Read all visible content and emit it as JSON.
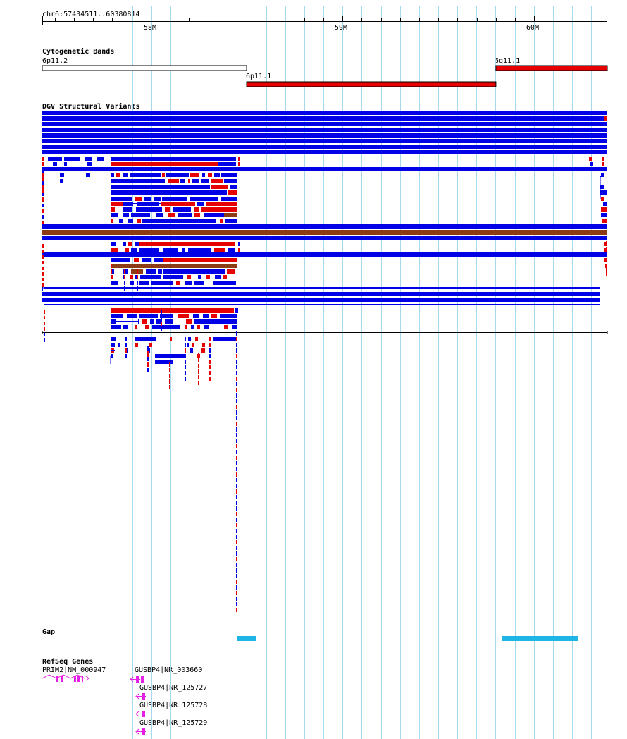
{
  "colors": {
    "background": "#ffffff",
    "gridline": "#a8d8ec",
    "sv_gain": "#0000e6",
    "sv_loss": "#e60000",
    "sv_gain_loss": "#8b3c14",
    "band_acen": "#e60000",
    "gap": "#1eb4e6",
    "refseq": "#e61ee6"
  },
  "ruler": {
    "position_label": "chr6:57434511..60380814",
    "start_bp": 57434511,
    "end_bp": 60380814,
    "ticks": [
      {
        "bp": 58000000,
        "label": "58M"
      },
      {
        "bp": 59000000,
        "label": "59M"
      },
      {
        "bp": 60000000,
        "label": "60M"
      }
    ]
  },
  "cytoband_track": {
    "title": "Cytogenetic Bands",
    "bands": [
      {
        "name": "6p11.2",
        "start": 57434511,
        "end": 58500000,
        "stain": "gneg",
        "row": 0
      },
      {
        "name": "6q11.1",
        "start": 59800000,
        "end": 60380814,
        "stain": "acen",
        "row": 0
      },
      {
        "name": "6p11.1",
        "start": 58500000,
        "end": 59800000,
        "stain": "acen",
        "row": 1
      }
    ]
  },
  "dgv_track": {
    "title": "DGV Structural Variants"
  },
  "gap_track": {
    "title": "Gap",
    "gaps": [
      {
        "start": 58450000,
        "end": 58550000
      },
      {
        "start": 59830000,
        "end": 60230000
      }
    ]
  },
  "refseq_track": {
    "title": "RefSeq Genes",
    "genes": [
      {
        "label": "PRIM2|NM_000947",
        "strand": "+"
      },
      {
        "label": "GUSBP4|NR_003660",
        "strand": "-"
      },
      {
        "label": "GUSBP4|NR_125727",
        "strand": "-"
      },
      {
        "label": "GUSBP4|NR_125728",
        "strand": "-"
      },
      {
        "label": "GUSBP4|NR_125729",
        "strand": "-"
      }
    ]
  }
}
